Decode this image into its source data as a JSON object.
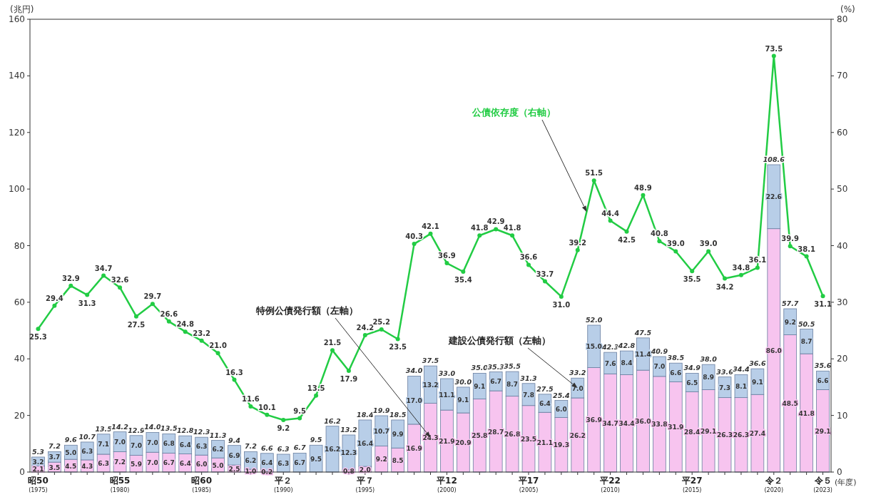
{
  "chart_data": {
    "type": "bar",
    "stacked": true,
    "ylabel": "(兆円)",
    "y2label": "(%)",
    "xlabel": "(年度)",
    "categories": [
      "昭50\n(1975)",
      null,
      null,
      null,
      null,
      "昭55\n(1980)",
      null,
      null,
      null,
      null,
      "昭60\n(1985)",
      null,
      null,
      null,
      null,
      "平２\n(1990)",
      null,
      null,
      null,
      null,
      "平７\n(1995)",
      null,
      null,
      null,
      null,
      "平12\n(2000)",
      null,
      null,
      null,
      null,
      "平17\n(2005)",
      null,
      null,
      null,
      null,
      "平22\n(2010)",
      null,
      null,
      null,
      null,
      "平27\n(2015)",
      null,
      null,
      null,
      null,
      "令２\n(2020)",
      null,
      null,
      "令５\n(2023)"
    ],
    "ylim": [
      0,
      160
    ],
    "yticks": [
      0,
      20,
      40,
      60,
      80,
      100,
      120,
      140,
      160
    ],
    "y2lim": [
      0,
      80
    ],
    "y2ticks": [
      0,
      10,
      20,
      30,
      40,
      50,
      60,
      70,
      80
    ],
    "legend": false,
    "marker": "circle",
    "totals": [
      "5.3",
      "7.2",
      "9.6",
      "10.7",
      "13.5",
      "14.2",
      "12.9",
      "14.0",
      "13.5",
      "12.8",
      "12.3",
      "11.3",
      "9.4",
      "7.2",
      "6.6",
      "6.3",
      "6.7",
      "9.5",
      "16.2",
      "13.2",
      "18.4",
      "19.9",
      "18.5",
      "34.0",
      "37.5",
      "33.0",
      "30.0",
      "35.0",
      "35.3",
      "35.5",
      "31.3",
      "27.5",
      "25.4",
      "33.2",
      "52.0",
      "42.3",
      "42.8",
      "47.5",
      "40.9",
      "38.5",
      "34.9",
      "38.0",
      "33.6",
      "34.4",
      "36.6",
      "108.6",
      "57.7",
      "50.5",
      "35.6"
    ],
    "series": [
      {
        "name": "特例公債発行額（左軸）",
        "color": "#f7c4ef",
        "values": [
          2.1,
          3.5,
          4.5,
          4.3,
          6.3,
          7.2,
          5.9,
          7.0,
          6.7,
          6.4,
          6.0,
          5.0,
          2.5,
          1.0,
          0.2,
          null,
          null,
          null,
          null,
          0.8,
          2.0,
          9.2,
          8.5,
          16.9,
          24.3,
          21.9,
          20.9,
          25.8,
          28.7,
          26.8,
          23.5,
          21.1,
          19.3,
          26.2,
          36.9,
          34.7,
          34.4,
          36.0,
          33.8,
          31.9,
          28.4,
          29.1,
          26.3,
          26.3,
          27.4,
          86.0,
          48.5,
          41.8,
          29.1
        ],
        "value_labels": [
          "2.1",
          "3.5",
          "4.5",
          "4.3",
          "6.3",
          "7.2",
          "5.9",
          "7.0",
          "6.7",
          "6.4",
          "6.0",
          "5.0",
          "2.5",
          "1.0",
          "0.2",
          null,
          null,
          null,
          null,
          "0.8",
          "2.0",
          "9.2",
          "8.5",
          "16.9",
          "24.3",
          "21.9",
          "20.9",
          "25.8",
          "28.7",
          "26.8",
          "23.5",
          "21.1",
          "19.3",
          "26.2",
          "36.9",
          "34.7",
          "34.4",
          "36.0",
          "33.8",
          "31.9",
          "28.4",
          "29.1",
          "26.3",
          "26.3",
          "27.4",
          "86.0",
          "48.5",
          "41.8",
          "29.1"
        ]
      },
      {
        "name": "建設公債発行額（左軸）",
        "color": "#b8cee8",
        "values": [
          3.2,
          3.7,
          5.0,
          6.3,
          7.1,
          7.0,
          7.0,
          7.0,
          6.8,
          6.4,
          6.3,
          6.2,
          6.9,
          6.2,
          6.4,
          6.3,
          6.7,
          9.5,
          16.2,
          12.3,
          16.4,
          10.7,
          9.9,
          17.0,
          13.2,
          11.1,
          9.1,
          9.1,
          6.7,
          8.7,
          7.8,
          6.4,
          6.0,
          7.0,
          15.0,
          7.6,
          8.4,
          11.4,
          7.0,
          6.6,
          6.5,
          8.9,
          7.3,
          8.1,
          9.1,
          22.6,
          9.2,
          8.7,
          6.6
        ],
        "value_labels": [
          "3.2",
          "3.7",
          "5.0",
          "6.3",
          "7.1",
          "7.0",
          "7.0",
          "7.0",
          "6.8",
          "6.4",
          "6.3",
          "6.2",
          "6.9",
          "6.2",
          "6.4",
          "6.3",
          "6.7",
          "9.5",
          "16.2",
          "12.3",
          "16.4",
          "10.7",
          "9.9",
          "17.0",
          "13.2",
          "11.1",
          "9.1",
          "9.1",
          "6.7",
          "8.7",
          "7.8",
          "6.4",
          "6.0",
          "7.0",
          "15.0",
          "7.6",
          "8.4",
          "11.4",
          "7.0",
          "6.6",
          "6.5",
          "8.9",
          "7.3",
          "8.1",
          "9.1",
          "22.6",
          "9.2",
          "8.7",
          "6.6"
        ]
      },
      {
        "name": "公債依存度（右軸）",
        "type": "line",
        "axis": "y2",
        "color": "#22cc44",
        "values": [
          25.3,
          29.4,
          32.9,
          31.3,
          34.7,
          32.6,
          27.5,
          29.7,
          26.6,
          24.8,
          23.2,
          21.0,
          16.3,
          11.6,
          10.1,
          9.2,
          9.5,
          13.5,
          21.5,
          17.9,
          24.2,
          25.2,
          23.5,
          40.3,
          42.1,
          36.9,
          35.4,
          41.8,
          42.9,
          41.8,
          36.6,
          33.7,
          31.0,
          39.2,
          51.5,
          44.4,
          42.5,
          48.9,
          40.8,
          39.0,
          35.5,
          39.0,
          34.2,
          34.8,
          36.1,
          73.5,
          39.9,
          38.1,
          31.1
        ],
        "value_labels": [
          "25.3",
          "29.4",
          "32.9",
          "31.3",
          "34.7",
          "32.6",
          "27.5",
          "29.7",
          "26.6",
          "24.8",
          "23.2",
          "21.0",
          "16.3",
          "11.6",
          "10.1",
          "9.2",
          "9.5",
          "13.5",
          "21.5",
          "17.9",
          "24.2",
          "25.2",
          "23.5",
          "40.3",
          "42.1",
          "36.9",
          "35.4",
          "41.8",
          "42.9",
          "41.8",
          "36.6",
          "33.7",
          "31.0",
          "39.2",
          "51.5",
          "44.4",
          "42.5",
          "48.9",
          "40.8",
          "39.0",
          "35.5",
          "39.0",
          "34.2",
          "34.8",
          "36.1",
          "73.5",
          "39.9",
          "38.1",
          "31.1"
        ]
      }
    ]
  }
}
